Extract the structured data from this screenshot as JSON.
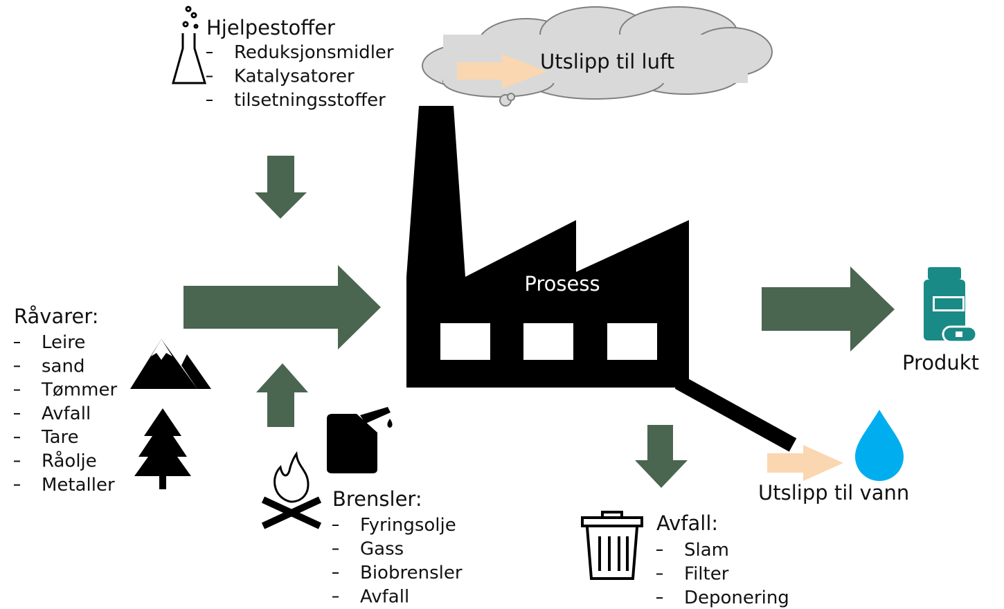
{
  "hjelpestoffer": {
    "title": "Hjelpestoffer",
    "items": [
      "Reduksjonsmidler",
      "Katalysatorer",
      "tilsetningsstoffer"
    ]
  },
  "utslipp_luft": "Utslipp til luft",
  "prosess": "Prosess",
  "ravarer": {
    "title": "Råvarer:",
    "items": [
      "Leire",
      "sand",
      "Tømmer",
      "Avfall",
      "Tare",
      "Råolje",
      "Metaller"
    ]
  },
  "brensler": {
    "title": "Brensler:",
    "items": [
      "Fyringsolje",
      "Gass",
      "Biobrensler",
      "Avfall"
    ]
  },
  "avfall": {
    "title": "Avfall:",
    "items": [
      "Slam",
      "Filter",
      "Deponering"
    ]
  },
  "produkt": "Produkt",
  "utslipp_vann": "Utslipp til vann"
}
